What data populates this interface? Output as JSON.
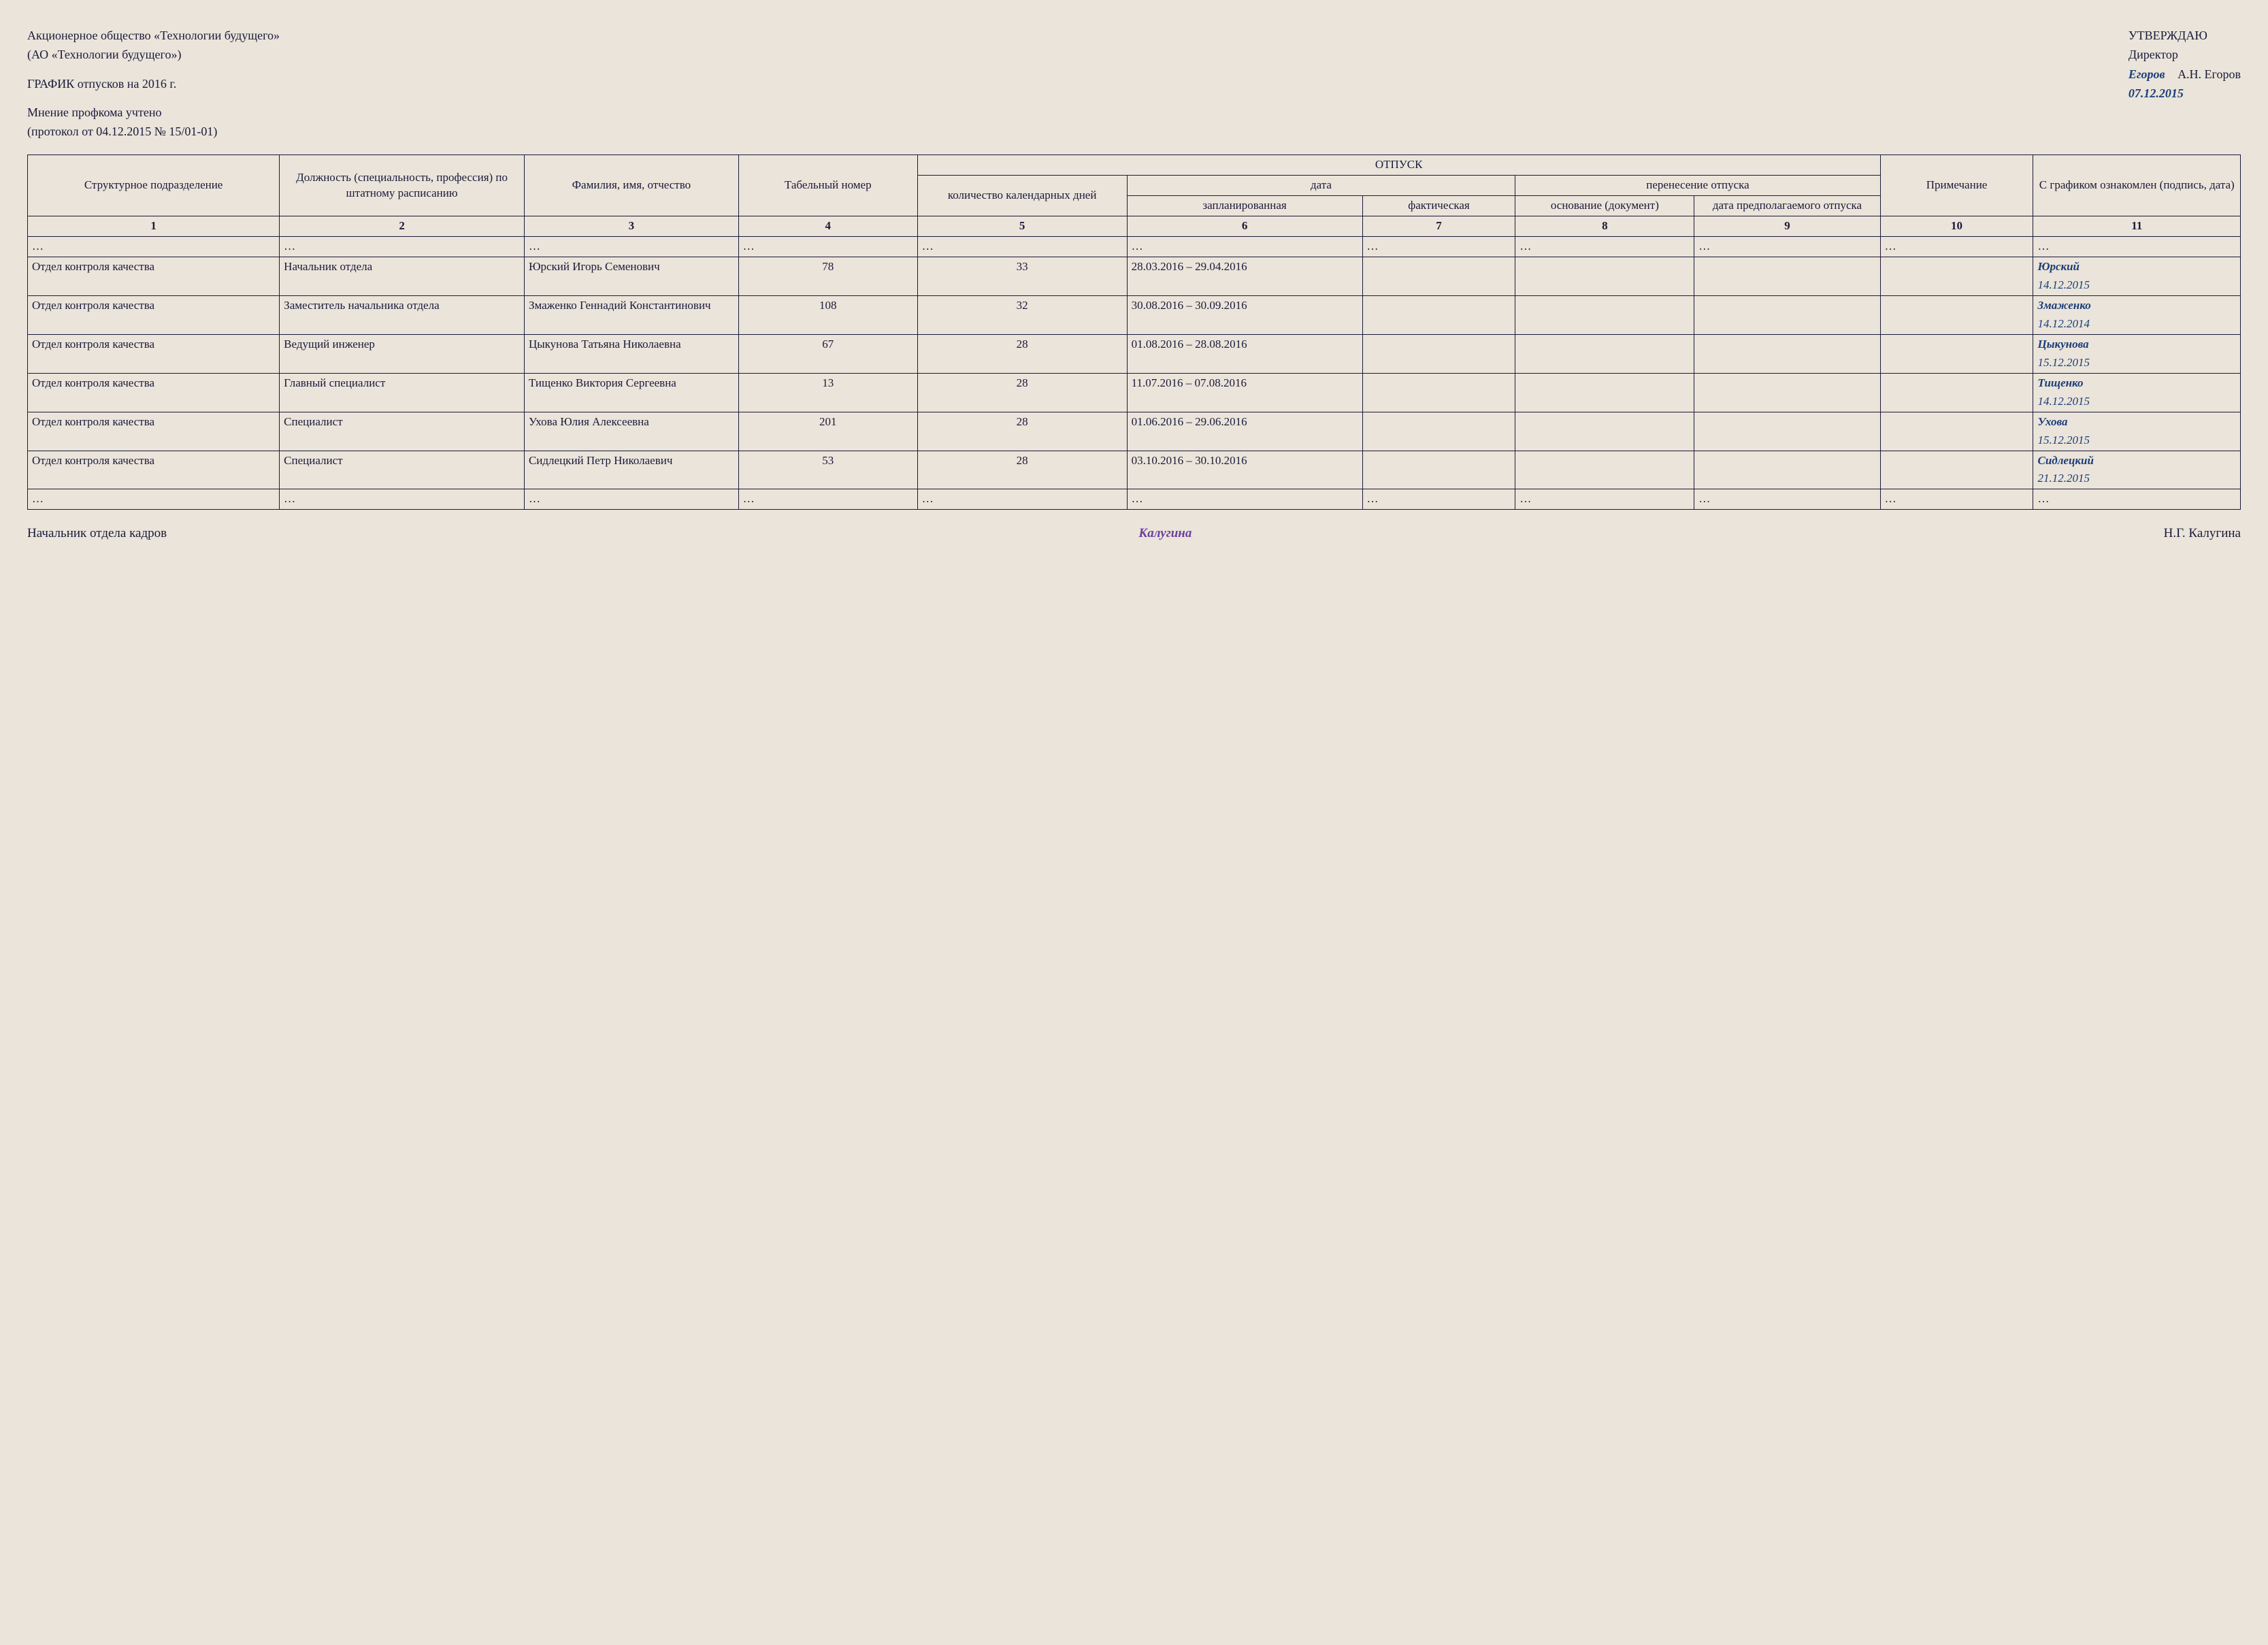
{
  "header": {
    "company_full": "Акционерное общество «Технологии будущего»",
    "company_short": "(АО «Технологии будущего»)",
    "schedule_title": "ГРАФИК отпусков на 2016 г.",
    "opinion": "Мнение профкома учтено",
    "protocol": "(протокол от 04.12.2015 № 15/01-01)"
  },
  "approval": {
    "title": "УТВЕРЖДАЮ",
    "position": "Директор",
    "signature": "Егоров",
    "name": "А.Н. Егоров",
    "date": "07.12.2015"
  },
  "table": {
    "headers": {
      "col1": "Структурное подразделение",
      "col2": "Должность (специальность, профессия) по штатному расписанию",
      "col3": "Фамилия, имя, отчество",
      "col4": "Табельный номер",
      "vac_group": "ОТПУСК",
      "col5": "количество календарных дней",
      "date_group": "дата",
      "col6": "запланиро­ванная",
      "col7": "факти­ческая",
      "transfer_group": "перенесение отпуска",
      "col8": "основа­ние (доку­мент)",
      "col9": "дата пред­полагае­мого отпуска",
      "col10": "Приме­чание",
      "col11": "С графиком ознакомлен (подпись, дата)"
    },
    "col_numbers": [
      "1",
      "2",
      "3",
      "4",
      "5",
      "6",
      "7",
      "8",
      "9",
      "10",
      "11"
    ],
    "rows": [
      {
        "ellipsis": true
      },
      {
        "dept": "Отдел контроля качества",
        "position": "Начальник отдела",
        "name": "Юрский Игорь Семенович",
        "tab_no": "78",
        "days": "33",
        "planned": "28.03.2016 – 29.04.2016",
        "actual": "",
        "basis": "",
        "postponed": "",
        "note": "",
        "sig_name": "Юрский",
        "sig_date": "14.12.2015"
      },
      {
        "dept": "Отдел контроля качества",
        "position": "Заместитель начальника отдела",
        "name": "Змаженко Геннадий Константи­нович",
        "tab_no": "108",
        "days": "32",
        "planned": "30.08.2016 – 30.09.2016",
        "actual": "",
        "basis": "",
        "postponed": "",
        "note": "",
        "sig_name": "Змаженко",
        "sig_date": "14.12.2014"
      },
      {
        "dept": "Отдел контроля качества",
        "position": "Ведущий инженер",
        "name": "Цыкунова Татьяна Николаевна",
        "tab_no": "67",
        "days": "28",
        "planned": "01.08.2016 – 28.08.2016",
        "actual": "",
        "basis": "",
        "postponed": "",
        "note": "",
        "sig_name": "Цыкунова",
        "sig_date": "15.12.2015"
      },
      {
        "dept": "Отдел контроля качества",
        "position": "Главный специалист",
        "name": "Тищенко Виктория Сергеевна",
        "tab_no": "13",
        "days": "28",
        "planned": "11.07.2016 – 07.08.2016",
        "actual": "",
        "basis": "",
        "postponed": "",
        "note": "",
        "sig_name": "Тищенко",
        "sig_date": "14.12.2015"
      },
      {
        "dept": "Отдел контроля качества",
        "position": "Специалист",
        "name": "Ухова Юлия Алексеевна",
        "tab_no": "201",
        "days": "28",
        "planned": "01.06.2016 – 29.06.2016",
        "actual": "",
        "basis": "",
        "postponed": "",
        "note": "",
        "sig_name": "Ухова",
        "sig_date": "15.12.2015"
      },
      {
        "dept": "Отдел контроля качества",
        "position": "Специалист",
        "name": "Сидлецкий Петр Николаевич",
        "tab_no": "53",
        "days": "28",
        "planned": "03.10.2016 – 30.10.2016",
        "actual": "",
        "basis": "",
        "postponed": "",
        "note": "",
        "sig_name": "Сидлецкий",
        "sig_date": "21.12.2015"
      },
      {
        "ellipsis": true
      }
    ]
  },
  "footer": {
    "position": "Начальник отдела кадров",
    "signature": "Калугина",
    "name": "Н.Г. Калугина"
  },
  "col_widths_pct": [
    10.7,
    10.4,
    9.1,
    7.6,
    8.9,
    10.0,
    6.5,
    7.6,
    7.9,
    6.5,
    8.8
  ]
}
